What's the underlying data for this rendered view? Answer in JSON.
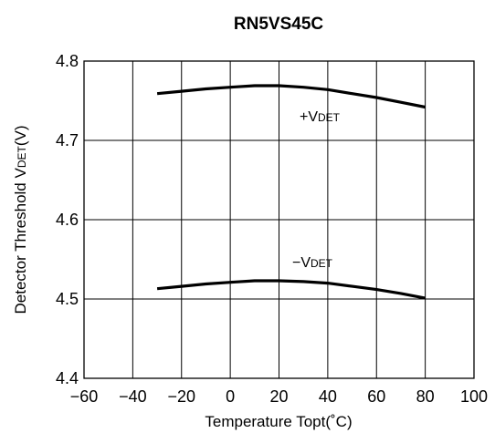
{
  "chart_data": {
    "type": "line",
    "title": "RN5VS45C",
    "xlabel": "Temperature Topt(˚C)",
    "ylabel": "Detector Threshold VDET(V)",
    "xlim": [
      -60,
      100
    ],
    "ylim": [
      4.4,
      4.8
    ],
    "xticks": [
      -60,
      -40,
      -20,
      0,
      20,
      40,
      60,
      80,
      100
    ],
    "yticks": [
      4.4,
      4.5,
      4.6,
      4.7,
      4.8
    ],
    "xtick_labels": [
      "−60",
      "−40",
      "−20",
      "0",
      "20",
      "40",
      "60",
      "80",
      "100"
    ],
    "ytick_labels": [
      "4.4",
      "4.5",
      "4.6",
      "4.7",
      "4.8"
    ],
    "grid": true,
    "series": [
      {
        "name": "+VDET",
        "x": [
          -30,
          -20,
          -10,
          0,
          10,
          20,
          30,
          40,
          50,
          60,
          70,
          80
        ],
        "values": [
          4.759,
          4.762,
          4.765,
          4.767,
          4.769,
          4.769,
          4.767,
          4.764,
          4.759,
          4.754,
          4.748,
          4.742
        ]
      },
      {
        "name": "−VDET",
        "x": [
          -30,
          -20,
          -10,
          0,
          10,
          20,
          30,
          40,
          50,
          60,
          70,
          80
        ],
        "values": [
          4.513,
          4.516,
          4.519,
          4.521,
          4.523,
          4.523,
          4.522,
          4.52,
          4.516,
          4.512,
          4.507,
          4.501
        ]
      }
    ],
    "series_labels": [
      {
        "sign": "+",
        "main": "V",
        "sub": "DET"
      },
      {
        "sign": "−",
        "main": "V",
        "sub": "DET"
      }
    ],
    "ylabel_parts": {
      "a": "Detector Threshold V",
      "sub": "DET",
      "b": "(V)"
    }
  }
}
